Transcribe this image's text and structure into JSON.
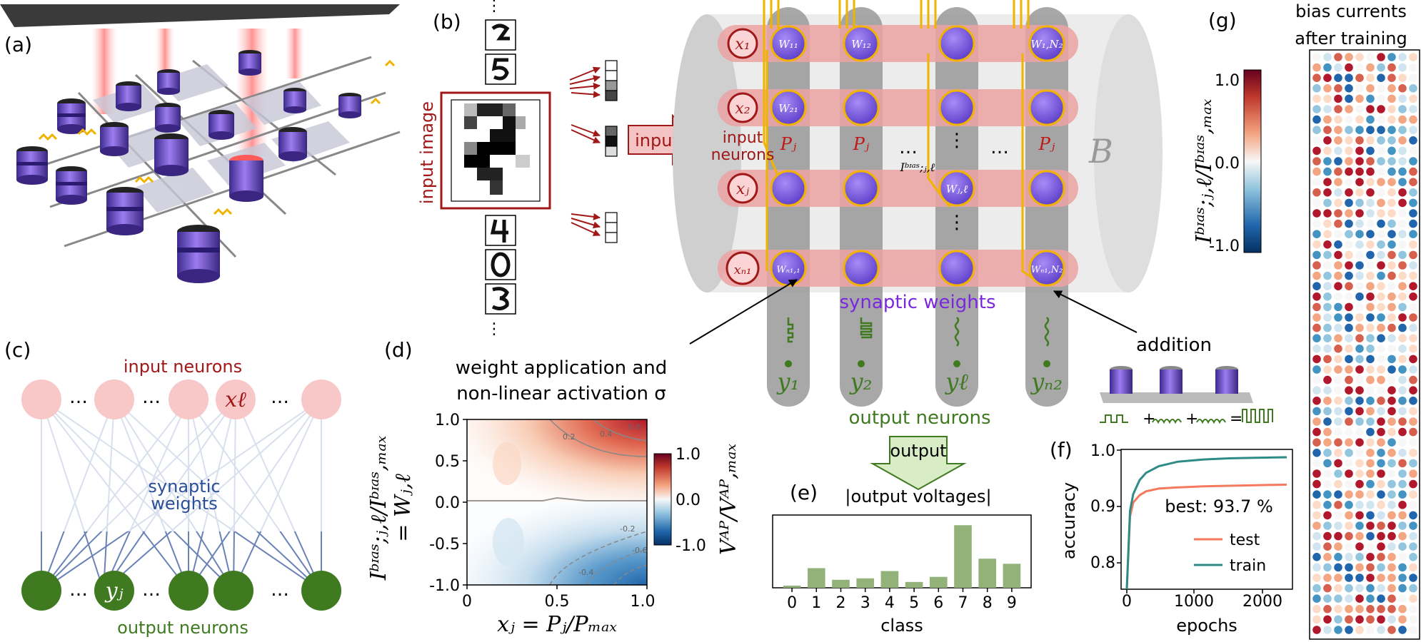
{
  "panels": {
    "a": "(a)",
    "b": "(b)",
    "c": "(c)",
    "d": "(d)",
    "e": "(e)",
    "f": "(f)",
    "g": "(g)"
  },
  "panel_b": {
    "input_image_label": "input image",
    "input_arrow": "input"
  },
  "panel_top": {
    "x1": "x₁",
    "x2": "x₂",
    "xj": "xⱼ",
    "xN1": "xₙ₁",
    "w11": "W₁₁",
    "w12": "W₁₂",
    "w1N2": "W₁,N₂",
    "w21": "W₂₁",
    "wjl": "Wⱼ,ℓ",
    "wN11": "Wₙ₁,₁",
    "wN1N2": "Wₙ₁,N₂",
    "pj": "Pⱼ",
    "ibias": "Iᵇᶦᵃˢ;ⱼ,ℓ",
    "dots": "…",
    "vdots": "⋮",
    "B": "B",
    "input_neurons": "input\nneurons",
    "synaptic_weights": "synaptic weights",
    "y1": "y₁",
    "y2": "y₂",
    "yl": "yℓ",
    "yN2": "yₙ₂",
    "addition": "addition",
    "output_neurons": "output neurons",
    "output_arrow": "output",
    "addition_eq": "+ + ="
  },
  "panel_c": {
    "input_neurons": "input neurons",
    "synaptic_weights_1": "synaptic",
    "synaptic_weights_2": "weights",
    "output_neurons": "output neurons",
    "x_l": "xℓ",
    "y_j": "yⱼ",
    "dots": "…"
  },
  "panel_d": {
    "caption_1": "weight application and",
    "caption_2": "non-linear activation σ",
    "xlabel": "xⱼ = Pⱼ/Pₘₐₓ",
    "ylabel_1": "Iᵇᶦᵃˢ;ⱼ,ℓ/Iᵇᶦᵃˢ,ₘₐₓ",
    "ylabel_2": "= Wⱼ,ℓ",
    "cbar_label": "Vᴬᴾ/Vᴬᴾ,ₘₐₓ",
    "xticks": [
      "0",
      "0.5",
      "1.0"
    ],
    "yticks": [
      "1.0",
      "0.5",
      "0.0",
      "-0.5",
      "-1.0"
    ],
    "cbar_ticks": [
      "1.0",
      "0.0",
      "-1.0"
    ],
    "contour_labels": [
      "0.2",
      "0.4",
      "0.6",
      "-0.2",
      "-0.4",
      "-0.6"
    ]
  },
  "panel_e": {
    "title": "|output voltages|",
    "xlabel": "class"
  },
  "panel_f": {
    "ylabel": "accuracy",
    "xlabel": "epochs",
    "best": "best: 93.7 %",
    "legend_test": "test",
    "legend_train": "train",
    "yticks": [
      "1.0",
      "0.9",
      "0.8"
    ],
    "xticks": [
      "0",
      "1000",
      "2000"
    ]
  },
  "panel_g": {
    "title_1": "bias currents",
    "title_2": "after training",
    "cbar_label": "Iᵇᶦᵃˢ;ⱼ,ℓ/Iᵇᶦᵃˢ,ₘₐₓ",
    "cbar_ticks": [
      "1.0",
      "0.0",
      "-1.0"
    ]
  },
  "colors": {
    "dark_red": "#a01818",
    "pink": "#f4c4c4",
    "neuron_purple": "#7b55e0",
    "gold": "#f0b400",
    "green": "#3f7a21",
    "blue_line": "#2a4e9a",
    "test": "#f47a5e",
    "train": "#2e8b86",
    "bar": "#93b27a",
    "synaptic_purple": "#7a28e0"
  },
  "chart_data": [
    {
      "type": "bar",
      "title": "|output voltages|",
      "xlabel": "class",
      "categories": [
        "0",
        "1",
        "2",
        "3",
        "4",
        "5",
        "6",
        "7",
        "8",
        "9"
      ],
      "values": [
        0.03,
        0.27,
        0.11,
        0.13,
        0.23,
        0.08,
        0.15,
        0.86,
        0.4,
        0.33
      ],
      "ylim": [
        0,
        1
      ]
    },
    {
      "type": "line",
      "xlabel": "epochs",
      "ylabel": "accuracy",
      "xlim": [
        0,
        2500
      ],
      "ylim": [
        0.75,
        1.0
      ],
      "annotation": "best: 93.7 %",
      "series": [
        {
          "name": "test",
          "x": [
            0,
            50,
            100,
            200,
            300,
            500,
            800,
            1200,
            1600,
            2000,
            2500
          ],
          "y": [
            0.75,
            0.88,
            0.905,
            0.918,
            0.925,
            0.93,
            0.932,
            0.934,
            0.935,
            0.936,
            0.937
          ]
        },
        {
          "name": "train",
          "x": [
            0,
            50,
            100,
            200,
            300,
            500,
            800,
            1200,
            1600,
            2000,
            2500
          ],
          "y": [
            0.75,
            0.89,
            0.92,
            0.945,
            0.958,
            0.97,
            0.978,
            0.982,
            0.984,
            0.985,
            0.986
          ]
        }
      ]
    },
    {
      "type": "heatmap",
      "xlabel": "xⱼ = Pⱼ/Pₘₐₓ",
      "ylabel": "Iᵇᶦᵃˢ;ⱼ,ℓ/Iᵇᶦᵃˢ,ₘₐₓ = Wⱼ,ℓ",
      "xlim": [
        0,
        1.0
      ],
      "ylim": [
        -1.0,
        1.0
      ],
      "colorbar": {
        "label": "Vᴬᴾ/Vᴬᴾ,ₘₐₓ",
        "range": [
          -1.0,
          1.0
        ]
      }
    }
  ]
}
